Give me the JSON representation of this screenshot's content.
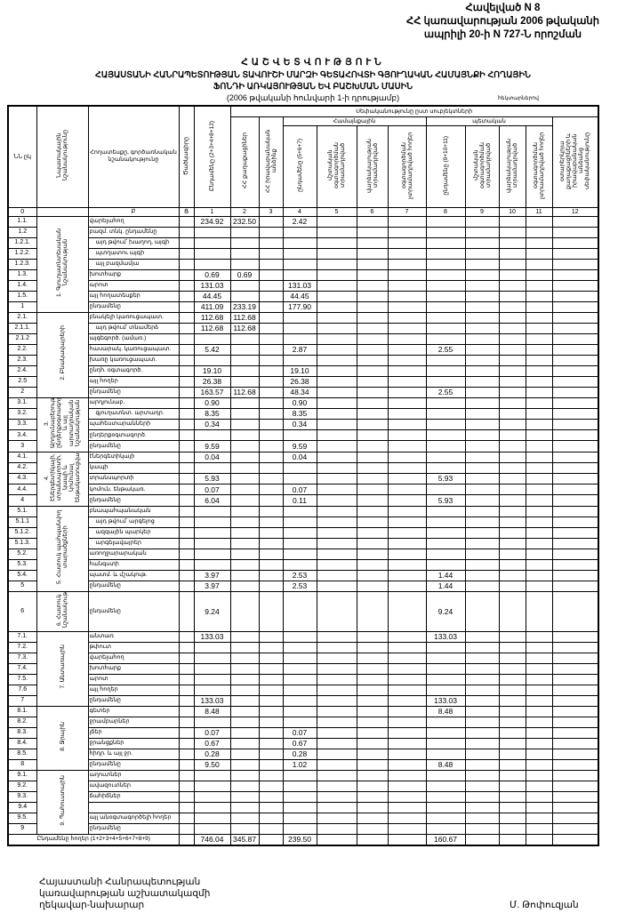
{
  "annex": [
    "Հավելված N 8",
    "ՀՀ կառավարության 2006 թվականի",
    "ապրիլի 20-ի N 727-Ն որոշման"
  ],
  "title": {
    "line1": "ՀԱՇՎԵՏՎՈՒԹՅՈՒՆ",
    "line2": "ՀԱՅԱՍՏԱՆԻ ՀԱՆՐԱՊԵՏՈՒԹՅԱՆ ՏԱՎՈՒՇԻ ՄԱՐԶԻ ԳԵՏԱՀՈՎՏԻ ԳՅՈՒՂԱԿԱՆ ՀԱՄԱՅՆՔԻ ՀՈՂԱՅԻՆ",
    "line3": "ՖՈՆԴԻ ԱՌԿԱՅՈՒԹՅԱՆ ԵՎ ԲԱՇԽՄԱՆ ՄԱՍԻՆ",
    "line4": "(2006 թվականի հունվարի 1-ի դրությամբ)",
    "unit": "հեկտարներով"
  },
  "headers": {
    "nn": "ՆՆ ըկ",
    "purpose": "Նպատակային նշանակությունը",
    "land_type": "Հողատեսքը, գործառնական նշանակությունը",
    "code": "Ծածկագիրը",
    "c1": "Ընդամենը (2+3+4+8+12)",
    "ownership": "Սեփականությունը ըստ սուբյեկտների",
    "c2": "ՀՀ քաղաքացիներ",
    "c3": "ՀՀ իրավաբանական անձինք",
    "community": "Համայնքային",
    "state": "պետական",
    "c4": "ընդամենը (5+6+7)",
    "c5": "մշտական օգտագործման տրամադրված",
    "c6": "վարձակալության տրամադրված",
    "c7": "օգտագործման չտրամադրված հողեր",
    "c8": "ընդամենը (9+10+11)",
    "c9": "մշտական օգտագործման տրամադրված",
    "c10": "վարձակալության տրամադրված",
    "c11": "օգտագործման չտրամադրված հողեր",
    "c12": "օտարերկրյա քաղաքացիների և իրավաբանական անձանց սեփականությունը",
    "numbers": [
      "0",
      "Բ",
      "Ց",
      "1",
      "2",
      "3",
      "4",
      "5",
      "6",
      "7",
      "8",
      "9",
      "10",
      "11",
      "12"
    ]
  },
  "groups": [
    {
      "label": "1. Գյուղատնտեսական նշանակության",
      "rows": [
        {
          "no": "1.1.",
          "label": "վարելահող",
          "v": [
            "234.92",
            "232.50",
            "",
            "2.42",
            "",
            "",
            "",
            "",
            "",
            "",
            "",
            ""
          ]
        },
        {
          "no": "1.2",
          "label": "բազմ. տնկ. ընդամենը",
          "v": []
        },
        {
          "no": "1.2.1.",
          "label": "այդ թվում՝ խաղող, այգի",
          "v": []
        },
        {
          "no": "1.2.2.",
          "label": "պտղատու այգի",
          "v": []
        },
        {
          "no": "1.2.3.",
          "label": "այլ բազմամյա",
          "v": []
        },
        {
          "no": "1.3.",
          "label": "խոտհարք",
          "v": [
            "0.69",
            "0.69"
          ]
        },
        {
          "no": "1.4.",
          "label": "արոտ",
          "v": [
            "131.03",
            "",
            "",
            "131.03"
          ]
        },
        {
          "no": "1.5.",
          "label": "այլ հողատեսքեր",
          "v": [
            "44.45",
            "",
            "",
            "44.45"
          ]
        },
        {
          "no": "1",
          "label": "ընդամենը",
          "v": [
            "411.09",
            "233.19",
            "",
            "177.90"
          ]
        }
      ]
    },
    {
      "label": "2. Բնակավայրերի",
      "rows": [
        {
          "no": "2.1.",
          "label": "բնակելի կառուցապատ.",
          "v": [
            "112.68",
            "112.68"
          ]
        },
        {
          "no": "2.1.1.",
          "label": "այդ թվում՝ տնամերձ",
          "v": [
            "112.68",
            "112.68"
          ]
        },
        {
          "no": "2.1.2",
          "label": "այգեգործ. (ամառ.)",
          "v": []
        },
        {
          "no": "2.2.",
          "label": "հասարակ. կառուցապատ.",
          "v": [
            "5.42",
            "",
            "",
            "2.87",
            "",
            "",
            "",
            "2.55"
          ]
        },
        {
          "no": "2.3.",
          "label": "խառը կառուցապատ.",
          "v": []
        },
        {
          "no": "2.4.",
          "label": "ընդհ. օգտագործ.",
          "v": [
            "19.10",
            "",
            "",
            "19.10"
          ]
        },
        {
          "no": "2.5",
          "label": "այլ հողեր",
          "v": [
            "26.38",
            "",
            "",
            "26.38"
          ]
        },
        {
          "no": "2",
          "label": "ընդամենը",
          "v": [
            "163.57",
            "112.68",
            "",
            "48.34",
            "",
            "",
            "",
            "2.55"
          ]
        }
      ]
    },
    {
      "label": "3. Արդյունաբերության, ընդերքօգտագործման և այլ արտադրական նշանակության",
      "rows": [
        {
          "no": "3.1.",
          "label": "արդյունաբ.",
          "v": [
            "0.90",
            "",
            "",
            "0.90"
          ]
        },
        {
          "no": "3.2.",
          "label": "գյուղատնտ. արտադր.",
          "v": [
            "8.35",
            "",
            "",
            "8.35"
          ]
        },
        {
          "no": "3.3.",
          "label": "պահեստարանների",
          "v": [
            "0.34",
            "",
            "",
            "0.34"
          ]
        },
        {
          "no": "3.4.",
          "label": "ընդերքօգտագործ.",
          "v": []
        },
        {
          "no": "3",
          "label": "ընդամենը",
          "v": [
            "9.59",
            "",
            "",
            "9.59"
          ]
        }
      ]
    },
    {
      "label": "4. Էներգետիկայի, տրանսպորտի, կապի և կոմունալ ենթակառուցվածքների",
      "rows": [
        {
          "no": "4.1.",
          "label": "էներգետիկայի",
          "v": [
            "0.04",
            "",
            "",
            "0.04"
          ]
        },
        {
          "no": "4.2.",
          "label": "կապի",
          "v": []
        },
        {
          "no": "4.3.",
          "label": "տրանսպորտի",
          "v": [
            "5.93",
            "",
            "",
            "",
            "",
            "",
            "",
            "5.93"
          ]
        },
        {
          "no": "4.4.",
          "label": "կոմուն. ենթակառ.",
          "v": [
            "0.07",
            "",
            "",
            "0.07"
          ]
        },
        {
          "no": "4",
          "label": "ընդամենը",
          "v": [
            "6.04",
            "",
            "",
            "0.11",
            "",
            "",
            "",
            "5.93"
          ]
        }
      ]
    },
    {
      "label": "5. Հատուկ պահպանվող տարածքների",
      "rows": [
        {
          "no": "5.1.",
          "label": "բնապահպանական",
          "v": []
        },
        {
          "no": "5.1.1",
          "label": "այդ թվում՝ արգելոց",
          "v": []
        },
        {
          "no": "5.1.2.",
          "label": "ազգային պարկեր",
          "v": []
        },
        {
          "no": "5.1.3.",
          "label": "արգելավայրեր",
          "v": []
        },
        {
          "no": "5.2.",
          "label": "առողջարարական",
          "v": []
        },
        {
          "no": "5.3.",
          "label": "հանգստի",
          "v": []
        },
        {
          "no": "5.4.",
          "label": "պատմ. և մշակութ.",
          "v": [
            "3.97",
            "",
            "",
            "2.53",
            "",
            "",
            "",
            "1.44"
          ]
        },
        {
          "no": "5",
          "label": "ընդամենը",
          "v": [
            "3.97",
            "",
            "",
            "2.53",
            "",
            "",
            "",
            "1.44"
          ]
        }
      ]
    },
    {
      "label": "6. Հատուկ նշանակության",
      "tall": true,
      "rows": [
        {
          "no": "6",
          "label": "ընդամենը",
          "v": [
            "9.24",
            "",
            "",
            "",
            "",
            "",
            "",
            "9.24"
          ]
        }
      ]
    },
    {
      "label": "7. Անտառային",
      "rows": [
        {
          "no": "7.1.",
          "label": "անտառ",
          "v": [
            "133.03",
            "",
            "",
            "",
            "",
            "",
            "",
            "133.03"
          ]
        },
        {
          "no": "7.2.",
          "label": "թփուտ",
          "v": []
        },
        {
          "no": "7.3.",
          "label": "վարելահող",
          "v": []
        },
        {
          "no": "7.4.",
          "label": "խոտհարք",
          "v": []
        },
        {
          "no": "7.5.",
          "label": "արոտ",
          "v": []
        },
        {
          "no": "7.6",
          "label": "այլ հողեր",
          "v": []
        },
        {
          "no": "7",
          "label": "ընդամենը",
          "v": [
            "133.03",
            "",
            "",
            "",
            "",
            "",
            "",
            "133.03"
          ]
        }
      ]
    },
    {
      "label": "8. Ջրային",
      "rows": [
        {
          "no": "8.1.",
          "label": "գետեր",
          "v": [
            "8.48",
            "",
            "",
            "",
            "",
            "",
            "",
            "8.48"
          ]
        },
        {
          "no": "8.2.",
          "label": "ջրամբարներ",
          "v": []
        },
        {
          "no": "8.3.",
          "label": "լճեր",
          "v": [
            "0.07",
            "",
            "",
            "0.07"
          ]
        },
        {
          "no": "8.4.",
          "label": "ջրանցքներ",
          "v": [
            "0.67",
            "",
            "",
            "0.67"
          ]
        },
        {
          "no": "8.5.",
          "label": "հիդր. և այլ ջր.",
          "v": [
            "0.28",
            "",
            "",
            "0.28"
          ]
        },
        {
          "no": "8",
          "label": "ընդամենը",
          "v": [
            "9.50",
            "",
            "",
            "1.02",
            "",
            "",
            "",
            "8.48"
          ]
        }
      ]
    },
    {
      "label": "9. Պահուստային",
      "rows": [
        {
          "no": "9.1.",
          "label": "աղուտներ",
          "v": []
        },
        {
          "no": "9.2.",
          "label": "ավազուտներ",
          "v": []
        },
        {
          "no": "9.3.",
          "label": "ճահիճներ",
          "v": []
        },
        {
          "no": "9.4",
          "label": "",
          "v": []
        },
        {
          "no": "9.5.",
          "label": "այլ անօգտագործելի հողեր",
          "v": []
        },
        {
          "no": "9",
          "label": "ընդամենը",
          "v": []
        }
      ]
    }
  ],
  "total": {
    "label": "Ընդամենը հողեր (1+2+3+4+5+6+7+8+9)",
    "v": [
      "746.04",
      "345.87",
      "",
      "239.50",
      "",
      "",
      "",
      "160.67"
    ]
  },
  "footer": {
    "lines": [
      "Հայաստանի Հանրապետության",
      "կառավարության աշխատակազմի",
      "ղեկավար-նախարար"
    ],
    "signatory": "Մ. Թոփուզյան"
  }
}
